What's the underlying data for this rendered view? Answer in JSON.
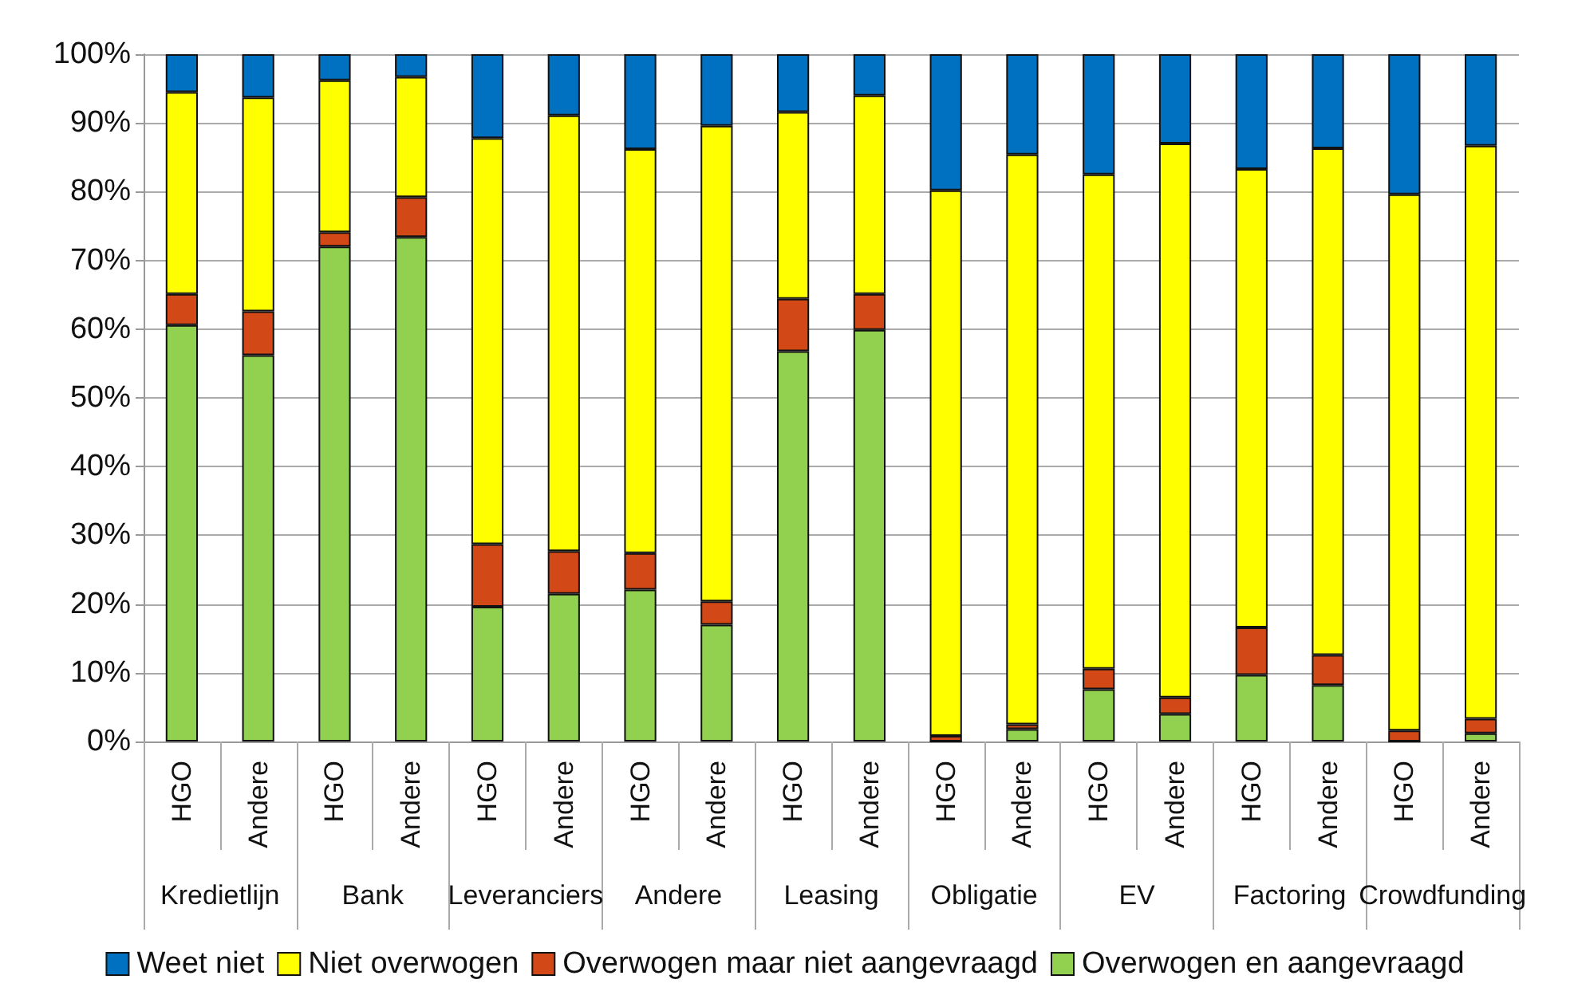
{
  "chart_data": {
    "type": "bar",
    "stacked": true,
    "categories": [
      "HGO",
      "Andere",
      "HGO",
      "Andere",
      "HGO",
      "Andere",
      "HGO",
      "Andere",
      "HGO",
      "Andere",
      "HGO",
      "Andere",
      "HGO",
      "Andere",
      "HGO",
      "Andere",
      "HGO",
      "Andere"
    ],
    "annotations": [
      "Kredietlijn",
      "Bank",
      "Leveranciers",
      "Andere",
      "Leasing",
      "Obligatie",
      "EV",
      "Factoring",
      "Crowdfunding"
    ],
    "series": [
      {
        "name": "Overwogen en aangevraagd",
        "color": "#92d050",
        "values": [
          60.6,
          56.2,
          72.0,
          73.4,
          19.6,
          21.5,
          22.1,
          17.0,
          56.8,
          59.9,
          0,
          1.8,
          7.6,
          4.0,
          9.7,
          8.2,
          0,
          1.2
        ]
      },
      {
        "name": "Overwogen maar niet aangevraagd",
        "color": "#d34817",
        "values": [
          4.5,
          6.4,
          2.1,
          5.8,
          9.1,
          6.2,
          5.3,
          3.4,
          7.6,
          5.2,
          0.8,
          0.7,
          3.0,
          2.4,
          6.9,
          4.4,
          1.6,
          2.1
        ]
      },
      {
        "name": "Niet overwogen",
        "color": "#ffff00",
        "values": [
          29.4,
          31.1,
          22.1,
          17.5,
          59.1,
          63.4,
          58.8,
          69.2,
          27.2,
          28.9,
          79.4,
          82.9,
          71.9,
          80.6,
          66.7,
          73.7,
          78.0,
          83.4
        ]
      },
      {
        "name": "Weet niet",
        "color": "#0070c0",
        "values": [
          5.5,
          6.3,
          3.8,
          3.3,
          12.2,
          8.9,
          13.8,
          10.4,
          8.4,
          6.0,
          19.8,
          14.6,
          17.5,
          13.0,
          16.7,
          13.7,
          20.4,
          13.3
        ]
      }
    ],
    "ylim": [
      0,
      100
    ],
    "yticks": [
      {
        "value": 0,
        "label": "0%"
      },
      {
        "value": 10,
        "label": "10%"
      },
      {
        "value": 20,
        "label": "20%"
      },
      {
        "value": 30,
        "label": "30%"
      },
      {
        "value": 40,
        "label": "40%"
      },
      {
        "value": 50,
        "label": "50%"
      },
      {
        "value": 60,
        "label": "60%"
      },
      {
        "value": 70,
        "label": "70%"
      },
      {
        "value": 80,
        "label": "80%"
      },
      {
        "value": 90,
        "label": "90%"
      },
      {
        "value": 100,
        "label": "100%"
      }
    ],
    "grid": "y",
    "legend": "bottom"
  }
}
